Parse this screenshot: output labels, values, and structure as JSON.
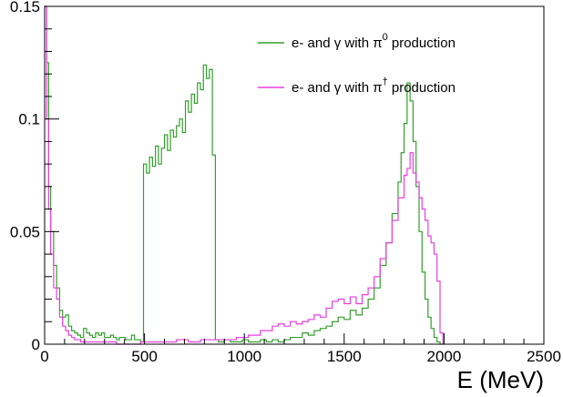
{
  "chart_data": {
    "type": "histogram",
    "xlabel": "E (MeV)",
    "ylabel": "",
    "xlim": [
      0,
      2500
    ],
    "ylim": [
      0,
      0.15
    ],
    "x_ticks": [
      0,
      500,
      1000,
      1500,
      2000,
      2500
    ],
    "x_tick_labels": [
      "0",
      "500",
      "1000",
      "1500",
      "2000",
      "2500"
    ],
    "y_ticks": [
      0,
      0.05,
      0.1,
      0.15
    ],
    "y_tick_labels": [
      "0",
      "0.05",
      "0.1",
      "0.15"
    ],
    "grid": false,
    "legend_position": "top-right",
    "series": [
      {
        "name_prefix": "e- and ",
        "name_gamma": "γ",
        "name_with": " with ",
        "name_pi": "π",
        "name_sup": "0",
        "name_suffix": " production",
        "color": "#33a02c",
        "points": [
          [
            0,
            0.15
          ],
          [
            10,
            0.125
          ],
          [
            20,
            0.07
          ],
          [
            30,
            0.05
          ],
          [
            45,
            0.035
          ],
          [
            60,
            0.025
          ],
          [
            75,
            0.015
          ],
          [
            90,
            0.012
          ],
          [
            105,
            0.013
          ],
          [
            120,
            0.008
          ],
          [
            135,
            0.006
          ],
          [
            150,
            0.005
          ],
          [
            165,
            0.004
          ],
          [
            180,
            0.003
          ],
          [
            195,
            0.007
          ],
          [
            210,
            0.005
          ],
          [
            225,
            0.004
          ],
          [
            240,
            0.003
          ],
          [
            255,
            0.005
          ],
          [
            270,
            0.004
          ],
          [
            285,
            0.005
          ],
          [
            300,
            0.003
          ],
          [
            315,
            0.003
          ],
          [
            330,
            0.004
          ],
          [
            345,
            0.003
          ],
          [
            360,
            0.002
          ],
          [
            375,
            0.003
          ],
          [
            390,
            0.003
          ],
          [
            405,
            0.002
          ],
          [
            420,
            0.002
          ],
          [
            435,
            0.004
          ],
          [
            450,
            0.002
          ],
          [
            465,
            0.002
          ],
          [
            480,
            0.001
          ],
          [
            495,
            0.08
          ],
          [
            510,
            0.076
          ],
          [
            525,
            0.083
          ],
          [
            540,
            0.079
          ],
          [
            555,
            0.088
          ],
          [
            570,
            0.08
          ],
          [
            585,
            0.087
          ],
          [
            600,
            0.093
          ],
          [
            615,
            0.086
          ],
          [
            630,
            0.095
          ],
          [
            645,
            0.092
          ],
          [
            660,
            0.097
          ],
          [
            675,
            0.1
          ],
          [
            690,
            0.094
          ],
          [
            705,
            0.108
          ],
          [
            720,
            0.103
          ],
          [
            735,
            0.111
          ],
          [
            750,
            0.107
          ],
          [
            765,
            0.116
          ],
          [
            780,
            0.113
          ],
          [
            795,
            0.124
          ],
          [
            810,
            0.118
          ],
          [
            825,
            0.122
          ],
          [
            840,
            0.084
          ],
          [
            855,
            0.002
          ],
          [
            870,
            0.001
          ],
          [
            900,
            0.002
          ],
          [
            930,
            0.001
          ],
          [
            960,
            0.001
          ],
          [
            990,
            0.002
          ],
          [
            1020,
            0.001
          ],
          [
            1050,
            0.001
          ],
          [
            1080,
            0.002
          ],
          [
            1110,
            0.001
          ],
          [
            1140,
            0.002
          ],
          [
            1170,
            0.001
          ],
          [
            1200,
            0.002
          ],
          [
            1230,
            0.003
          ],
          [
            1260,
            0.003
          ],
          [
            1290,
            0.005
          ],
          [
            1320,
            0.004
          ],
          [
            1350,
            0.006
          ],
          [
            1380,
            0.007
          ],
          [
            1410,
            0.008
          ],
          [
            1440,
            0.01
          ],
          [
            1470,
            0.012
          ],
          [
            1500,
            0.011
          ],
          [
            1530,
            0.015
          ],
          [
            1560,
            0.013
          ],
          [
            1590,
            0.016
          ],
          [
            1620,
            0.02
          ],
          [
            1650,
            0.025
          ],
          [
            1680,
            0.035
          ],
          [
            1710,
            0.045
          ],
          [
            1740,
            0.058
          ],
          [
            1770,
            0.072
          ],
          [
            1785,
            0.085
          ],
          [
            1800,
            0.098
          ],
          [
            1815,
            0.116
          ],
          [
            1830,
            0.108
          ],
          [
            1845,
            0.09
          ],
          [
            1860,
            0.07
          ],
          [
            1875,
            0.05
          ],
          [
            1890,
            0.032
          ],
          [
            1905,
            0.02
          ],
          [
            1920,
            0.012
          ],
          [
            1935,
            0.007
          ],
          [
            1950,
            0.003
          ],
          [
            1965,
            0.001
          ],
          [
            1980,
            0
          ]
        ]
      },
      {
        "name_prefix": "e- and ",
        "name_gamma": "γ",
        "name_with": " with ",
        "name_pi": "π",
        "name_sup": "†",
        "name_suffix": " production",
        "color": "#e83ee0",
        "points": [
          [
            0,
            0.15
          ],
          [
            10,
            0.1
          ],
          [
            20,
            0.06
          ],
          [
            30,
            0.04
          ],
          [
            45,
            0.025
          ],
          [
            60,
            0.02
          ],
          [
            75,
            0.012
          ],
          [
            90,
            0.008
          ],
          [
            105,
            0.006
          ],
          [
            120,
            0.004
          ],
          [
            135,
            0.003
          ],
          [
            150,
            0.002
          ],
          [
            180,
            0.001
          ],
          [
            240,
            0.001
          ],
          [
            300,
            0.001
          ],
          [
            360,
            0
          ],
          [
            420,
            0
          ],
          [
            480,
            0.001
          ],
          [
            540,
            0.001
          ],
          [
            600,
            0.001
          ],
          [
            660,
            0.002
          ],
          [
            720,
            0.001
          ],
          [
            780,
            0.002
          ],
          [
            840,
            0.002
          ],
          [
            900,
            0.002
          ],
          [
            960,
            0.003
          ],
          [
            1020,
            0.004
          ],
          [
            1080,
            0.006
          ],
          [
            1140,
            0.008
          ],
          [
            1170,
            0.009
          ],
          [
            1200,
            0.008
          ],
          [
            1230,
            0.01
          ],
          [
            1260,
            0.009
          ],
          [
            1290,
            0.01
          ],
          [
            1320,
            0.011
          ],
          [
            1350,
            0.013
          ],
          [
            1380,
            0.012
          ],
          [
            1410,
            0.016
          ],
          [
            1440,
            0.019
          ],
          [
            1470,
            0.02
          ],
          [
            1500,
            0.018
          ],
          [
            1530,
            0.021
          ],
          [
            1560,
            0.018
          ],
          [
            1590,
            0.022
          ],
          [
            1620,
            0.025
          ],
          [
            1650,
            0.03
          ],
          [
            1680,
            0.038
          ],
          [
            1710,
            0.045
          ],
          [
            1740,
            0.055
          ],
          [
            1770,
            0.065
          ],
          [
            1800,
            0.075
          ],
          [
            1815,
            0.078
          ],
          [
            1830,
            0.085
          ],
          [
            1845,
            0.076
          ],
          [
            1860,
            0.072
          ],
          [
            1875,
            0.065
          ],
          [
            1890,
            0.06
          ],
          [
            1905,
            0.055
          ],
          [
            1920,
            0.048
          ],
          [
            1935,
            0.045
          ],
          [
            1950,
            0.04
          ],
          [
            1965,
            0.028
          ],
          [
            1980,
            0.005
          ],
          [
            1995,
            0
          ]
        ]
      }
    ]
  }
}
